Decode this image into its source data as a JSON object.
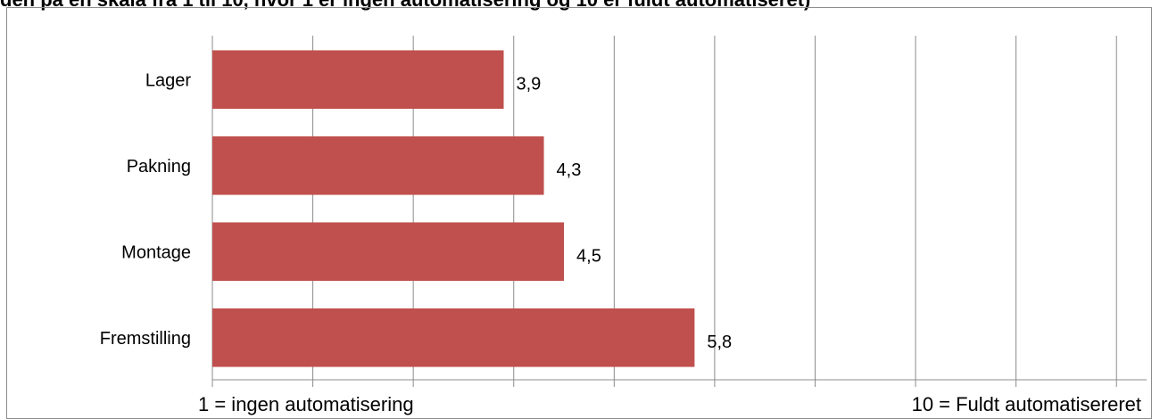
{
  "title_cut": "den på en skala fra 1 til 10, hvor 1 er ingen automatisering og 10 er fuldt automatiseret)",
  "colors": {
    "bar": "#c0504d",
    "grid": "#8c8c8c",
    "axis": "#8c8c8c",
    "text": "#000000"
  },
  "chart_data": {
    "type": "bar",
    "orientation": "horizontal",
    "categories": [
      "Lager",
      "Pakning",
      "Montage",
      "Fremstilling"
    ],
    "values": [
      3.9,
      4.3,
      4.5,
      5.8
    ],
    "value_labels": [
      "3,9",
      "4,3",
      "4,5",
      "5,8"
    ],
    "xlim": [
      1,
      10.3
    ],
    "grid": true,
    "x_axis_end_labels": {
      "min": "1 = ingen automatisering",
      "max": "10 = Fuldt automatisereret"
    }
  }
}
